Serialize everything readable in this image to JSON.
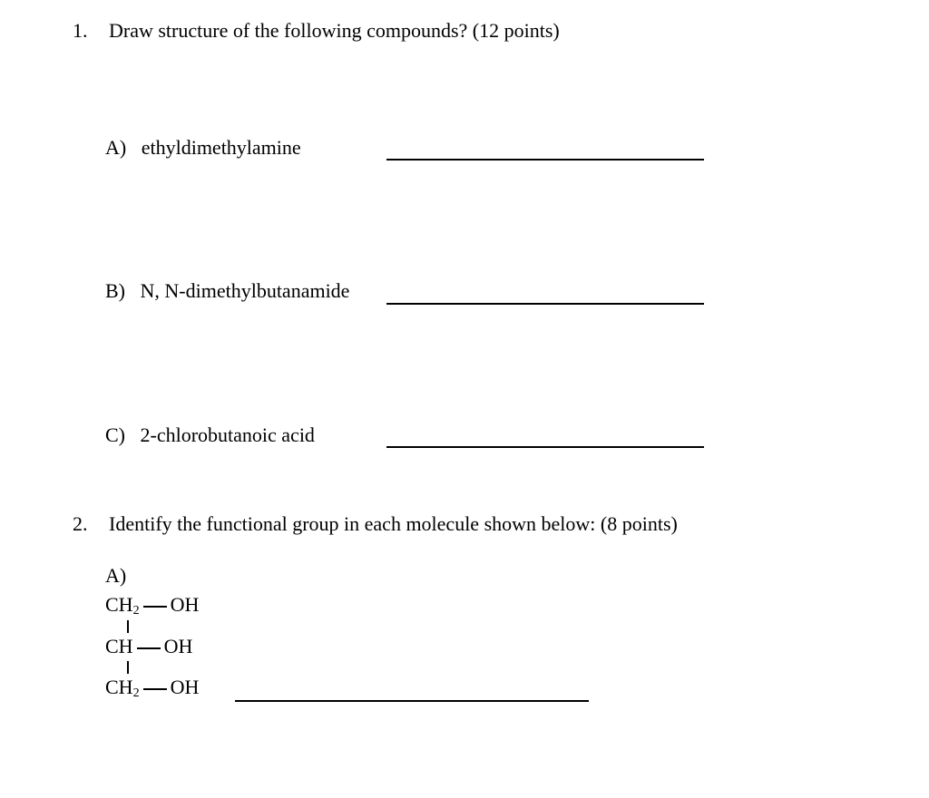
{
  "q1": {
    "number": "1.",
    "prompt": "Draw structure of the following compounds? (12 points)",
    "items": [
      {
        "letter": "A)",
        "name": "ethyldimethylamine"
      },
      {
        "letter": "B)",
        "name": "N, N-dimethylbutanamide"
      },
      {
        "letter": "C)",
        "name": "2-chlorobutanoic acid"
      }
    ]
  },
  "q2": {
    "number": "2.",
    "prompt": "Identify the functional group in each molecule shown below: (8 points)",
    "partA": {
      "letter": "A)",
      "structure": {
        "line1": {
          "left": "CH",
          "leftSub": "2",
          "right": "OH"
        },
        "line2": {
          "left": "CH",
          "right": "OH"
        },
        "line3": {
          "left": "CH",
          "leftSub": "2",
          "right": "OH"
        }
      }
    }
  },
  "style": {
    "blankLineWidthPx": 350,
    "blankLine2WidthPx": 390,
    "fontFamily": "Times New Roman",
    "fontSizePx": 22,
    "textColor": "#000000",
    "backgroundColor": "#ffffff"
  }
}
